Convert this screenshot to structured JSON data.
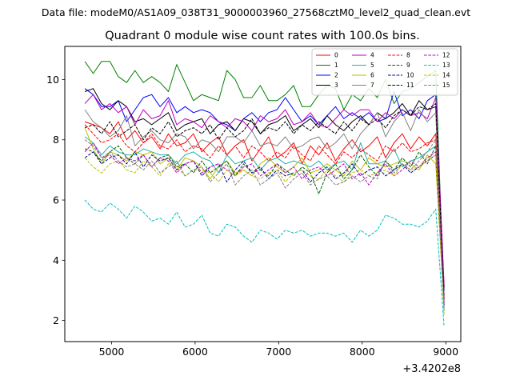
{
  "chart_data": {
    "type": "line",
    "suptitle": "Data file: modeM0/AS1A09_038T31_9000003960_27568cztM0_level2_quad_clean.evt",
    "title": "Quadrant 0 module wise count rates with 100.0s bins.",
    "xlabel": "",
    "ylabel": "",
    "x_offset_label": "+3.4202e8",
    "xlim": [
      4440,
      9180
    ],
    "ylim": [
      1.3,
      11.1
    ],
    "xticks": [
      5000,
      6000,
      7000,
      8000,
      9000
    ],
    "yticks": [
      2,
      4,
      6,
      8,
      10
    ],
    "grid": false,
    "legend_position": "top-right",
    "legend_columns": 4,
    "x": [
      4680,
      4780,
      4880,
      4980,
      5080,
      5180,
      5280,
      5380,
      5480,
      5580,
      5680,
      5780,
      5880,
      5980,
      6080,
      6180,
      6280,
      6380,
      6480,
      6580,
      6680,
      6780,
      6880,
      6980,
      7080,
      7180,
      7280,
      7380,
      7480,
      7580,
      7680,
      7780,
      7880,
      7980,
      8080,
      8180,
      8280,
      8380,
      8480,
      8580,
      8680,
      8780,
      8880,
      8980
    ],
    "series": [
      {
        "name": "0",
        "color": "#ff0000",
        "dash": "solid",
        "values": [
          8.6,
          8.5,
          8.4,
          8.2,
          8.6,
          8.0,
          8.3,
          7.9,
          8.1,
          7.7,
          8.2,
          7.8,
          7.9,
          8.2,
          7.6,
          7.9,
          8.1,
          7.5,
          7.8,
          8.0,
          7.3,
          7.7,
          8.1,
          7.4,
          7.6,
          7.9,
          7.2,
          7.8,
          7.5,
          7.9,
          7.3,
          7.7,
          8.0,
          7.6,
          7.8,
          8.1,
          7.4,
          7.9,
          8.2,
          7.7,
          8.1,
          7.8,
          8.2,
          2.8
        ]
      },
      {
        "name": "1",
        "color": "#008000",
        "dash": "solid",
        "values": [
          10.6,
          10.2,
          10.6,
          10.6,
          10.1,
          9.9,
          10.3,
          9.9,
          10.1,
          9.9,
          9.6,
          10.5,
          9.9,
          9.3,
          9.5,
          9.4,
          9.3,
          10.3,
          10.0,
          9.4,
          9.4,
          9.8,
          9.3,
          9.3,
          9.5,
          9.8,
          9.1,
          9.1,
          9.5,
          9.8,
          9.7,
          9.0,
          9.5,
          9.3,
          9.7,
          9.4,
          10.0,
          9.2,
          9.6,
          9.7,
          9.9,
          10.1,
          10.3,
          2.6
        ]
      },
      {
        "name": "2",
        "color": "#0000ff",
        "dash": "solid",
        "values": [
          9.7,
          9.5,
          9.1,
          9.1,
          9.3,
          8.6,
          9.0,
          9.4,
          9.5,
          9.1,
          9.4,
          8.9,
          9.1,
          8.9,
          9.0,
          8.9,
          8.6,
          8.5,
          8.3,
          8.7,
          8.9,
          8.6,
          8.9,
          9.0,
          9.4,
          9.0,
          8.6,
          8.8,
          8.5,
          8.8,
          9.1,
          8.7,
          8.9,
          8.7,
          8.9,
          8.6,
          8.7,
          9.6,
          8.8,
          9.0,
          8.7,
          9.3,
          9.5,
          3.0
        ]
      },
      {
        "name": "3",
        "color": "#000000",
        "dash": "solid",
        "values": [
          9.6,
          9.7,
          9.2,
          9.0,
          9.3,
          9.1,
          8.6,
          8.7,
          8.5,
          8.7,
          8.9,
          8.3,
          8.5,
          8.6,
          8.7,
          8.2,
          8.5,
          8.6,
          8.3,
          8.7,
          8.6,
          8.2,
          8.5,
          8.6,
          8.8,
          8.3,
          8.5,
          8.7,
          8.4,
          8.8,
          8.5,
          8.3,
          8.6,
          8.8,
          8.5,
          8.9,
          8.7,
          8.9,
          9.2,
          8.8,
          9.3,
          9.0,
          9.1,
          3.1
        ]
      },
      {
        "name": "4",
        "color": "#bf00bf",
        "dash": "solid",
        "values": [
          9.2,
          9.5,
          9.0,
          9.2,
          8.9,
          9.1,
          8.5,
          9.0,
          8.7,
          8.8,
          9.3,
          8.5,
          8.7,
          8.6,
          8.4,
          8.8,
          8.6,
          8.4,
          8.7,
          8.6,
          8.3,
          8.8,
          8.6,
          8.7,
          9.0,
          8.5,
          8.6,
          8.9,
          8.5,
          8.4,
          8.7,
          9.0,
          8.8,
          9.0,
          9.0,
          8.6,
          8.9,
          8.7,
          9.0,
          8.8,
          8.9,
          8.7,
          9.4,
          3.2
        ]
      },
      {
        "name": "5",
        "color": "#20b2aa",
        "dash": "solid",
        "values": [
          8.1,
          7.9,
          7.5,
          7.8,
          7.6,
          7.5,
          7.5,
          7.7,
          7.6,
          7.5,
          7.5,
          7.2,
          7.5,
          7.6,
          7.4,
          7.3,
          6.9,
          7.5,
          7.2,
          7.3,
          7.4,
          7.0,
          7.3,
          7.4,
          7.2,
          7.3,
          7.2,
          7.1,
          7.3,
          7.0,
          7.2,
          7.3,
          7.0,
          7.9,
          7.2,
          7.2,
          7.3,
          7.7,
          7.1,
          7.3,
          7.4,
          7.6,
          7.8,
          2.3
        ]
      },
      {
        "name": "6",
        "color": "#bfbf00",
        "dash": "solid",
        "values": [
          8.4,
          7.7,
          7.2,
          7.6,
          7.5,
          7.3,
          7.6,
          7.5,
          7.6,
          7.2,
          7.4,
          7.0,
          7.4,
          7.3,
          7.1,
          6.7,
          7.1,
          7.3,
          6.9,
          7.0,
          6.8,
          7.2,
          7.4,
          7.1,
          6.9,
          7.1,
          7.4,
          6.9,
          7.0,
          7.2,
          7.0,
          6.8,
          7.3,
          7.0,
          7.4,
          7.2,
          7.1,
          7.2,
          7.3,
          7.2,
          7.0,
          7.5,
          7.2,
          2.5
        ]
      },
      {
        "name": "7",
        "color": "#808080",
        "dash": "solid",
        "values": [
          9.0,
          8.6,
          8.4,
          8.1,
          8.3,
          8.8,
          7.8,
          8.1,
          8.3,
          8.0,
          7.9,
          8.2,
          8.1,
          7.7,
          8.0,
          7.9,
          7.6,
          8.1,
          8.1,
          7.9,
          8.3,
          7.8,
          7.9,
          7.8,
          8.1,
          7.7,
          7.8,
          8.0,
          8.1,
          7.7,
          7.9,
          8.2,
          7.7,
          8.2,
          8.5,
          8.9,
          8.1,
          8.6,
          8.9,
          8.3,
          9.0,
          8.6,
          8.9,
          2.4
        ]
      },
      {
        "name": "8",
        "color": "#ff0000",
        "dash": "dashed",
        "values": [
          8.5,
          8.2,
          7.9,
          8.0,
          8.2,
          7.8,
          7.6,
          7.9,
          8.2,
          7.8,
          7.7,
          8.0,
          7.6,
          7.8,
          7.7,
          7.4,
          7.8,
          7.5,
          7.8,
          7.4,
          7.8,
          7.6,
          7.3,
          7.6,
          7.4,
          7.8,
          7.5,
          7.3,
          7.8,
          7.5,
          7.2,
          7.6,
          7.4,
          7.7,
          7.5,
          7.3,
          7.8,
          7.6,
          7.9,
          7.6,
          7.7,
          7.9,
          8.0,
          2.6
        ]
      },
      {
        "name": "9",
        "color": "#006400",
        "dash": "dashed",
        "values": [
          7.7,
          7.6,
          7.3,
          7.6,
          7.8,
          7.4,
          7.2,
          7.5,
          7.1,
          7.4,
          7.5,
          7.1,
          7.2,
          6.9,
          7.3,
          6.9,
          7.1,
          7.3,
          6.8,
          7.2,
          6.9,
          7.0,
          6.8,
          7.2,
          7.0,
          6.8,
          7.1,
          6.9,
          6.2,
          6.9,
          7.2,
          6.7,
          7.0,
          7.5,
          7.1,
          6.8,
          7.3,
          7.0,
          7.4,
          7.1,
          7.6,
          7.2,
          7.8,
          2.4
        ]
      },
      {
        "name": "10",
        "color": "#00008b",
        "dash": "dashed",
        "values": [
          7.4,
          7.6,
          7.2,
          7.4,
          7.5,
          7.2,
          7.6,
          7.1,
          7.5,
          7.3,
          7.4,
          7.0,
          7.2,
          7.3,
          6.8,
          7.1,
          7.2,
          6.6,
          7.0,
          7.3,
          6.9,
          7.1,
          6.7,
          7.0,
          6.8,
          6.9,
          7.0,
          6.6,
          6.9,
          7.1,
          6.7,
          6.9,
          7.2,
          6.8,
          7.0,
          7.1,
          6.8,
          7.0,
          7.2,
          6.9,
          7.1,
          7.3,
          7.5,
          2.5
        ]
      },
      {
        "name": "11",
        "color": "#000000",
        "dash": "dashed",
        "values": [
          8.4,
          8.5,
          8.2,
          8.6,
          8.1,
          8.3,
          8.5,
          8.0,
          8.4,
          8.2,
          8.6,
          8.1,
          8.3,
          8.4,
          8.2,
          8.5,
          8.0,
          8.4,
          8.1,
          8.3,
          8.7,
          8.2,
          8.4,
          8.3,
          8.6,
          8.2,
          8.5,
          8.3,
          8.6,
          8.4,
          8.2,
          8.6,
          8.3,
          8.7,
          8.5,
          8.7,
          8.4,
          8.8,
          9.0,
          8.8,
          9.1,
          9.0,
          9.2,
          2.7
        ]
      },
      {
        "name": "12",
        "color": "#bf00bf",
        "dash": "dashed",
        "values": [
          7.6,
          7.9,
          7.4,
          7.5,
          7.2,
          7.4,
          7.3,
          7.5,
          7.1,
          7.4,
          7.3,
          6.9,
          7.2,
          7.3,
          6.9,
          7.1,
          7.2,
          7.0,
          6.8,
          7.1,
          7.2,
          6.8,
          7.0,
          7.2,
          6.9,
          7.1,
          6.7,
          7.0,
          7.1,
          6.8,
          7.0,
          7.2,
          6.7,
          6.9,
          6.5,
          6.9,
          7.2,
          6.8,
          7.0,
          7.3,
          7.1,
          7.4,
          7.6,
          2.6
        ]
      },
      {
        "name": "13",
        "color": "#00bfbf",
        "dash": "dashed",
        "values": [
          6.0,
          5.7,
          5.6,
          5.9,
          5.7,
          5.4,
          5.8,
          5.6,
          5.3,
          5.4,
          5.2,
          5.6,
          5.1,
          5.2,
          5.5,
          4.9,
          4.8,
          5.2,
          5.1,
          4.8,
          4.6,
          5.0,
          4.9,
          4.7,
          5.0,
          4.9,
          5.0,
          4.8,
          4.9,
          4.9,
          4.8,
          4.9,
          4.6,
          5.0,
          4.8,
          5.0,
          5.5,
          5.4,
          5.2,
          5.2,
          5.1,
          5.3,
          5.7,
          1.8
        ]
      },
      {
        "name": "14",
        "color": "#bfbf00",
        "dash": "dashed",
        "values": [
          7.4,
          7.1,
          6.9,
          7.2,
          7.3,
          7.0,
          6.9,
          7.3,
          7.1,
          6.8,
          7.2,
          7.1,
          6.8,
          7.0,
          7.0,
          6.9,
          6.6,
          7.0,
          6.8,
          7.0,
          6.8,
          6.7,
          6.9,
          7.0,
          6.6,
          6.9,
          7.0,
          6.8,
          6.7,
          7.0,
          6.8,
          6.6,
          6.9,
          7.0,
          6.8,
          6.9,
          7.0,
          6.8,
          7.2,
          7.0,
          7.1,
          7.3,
          7.5,
          2.2
        ]
      },
      {
        "name": "15",
        "color": "#808080",
        "dash": "dashed",
        "values": [
          8.0,
          7.8,
          7.4,
          7.6,
          7.3,
          7.1,
          7.2,
          7.0,
          7.3,
          6.9,
          7.1,
          7.3,
          6.8,
          7.0,
          7.1,
          6.6,
          6.9,
          7.2,
          6.5,
          6.8,
          7.0,
          6.5,
          6.7,
          6.9,
          6.4,
          6.7,
          6.9,
          6.5,
          6.7,
          6.8,
          6.5,
          6.6,
          6.8,
          6.6,
          6.8,
          6.7,
          7.3,
          6.9,
          7.2,
          7.0,
          7.3,
          7.6,
          8.0,
          2.4
        ]
      }
    ]
  }
}
